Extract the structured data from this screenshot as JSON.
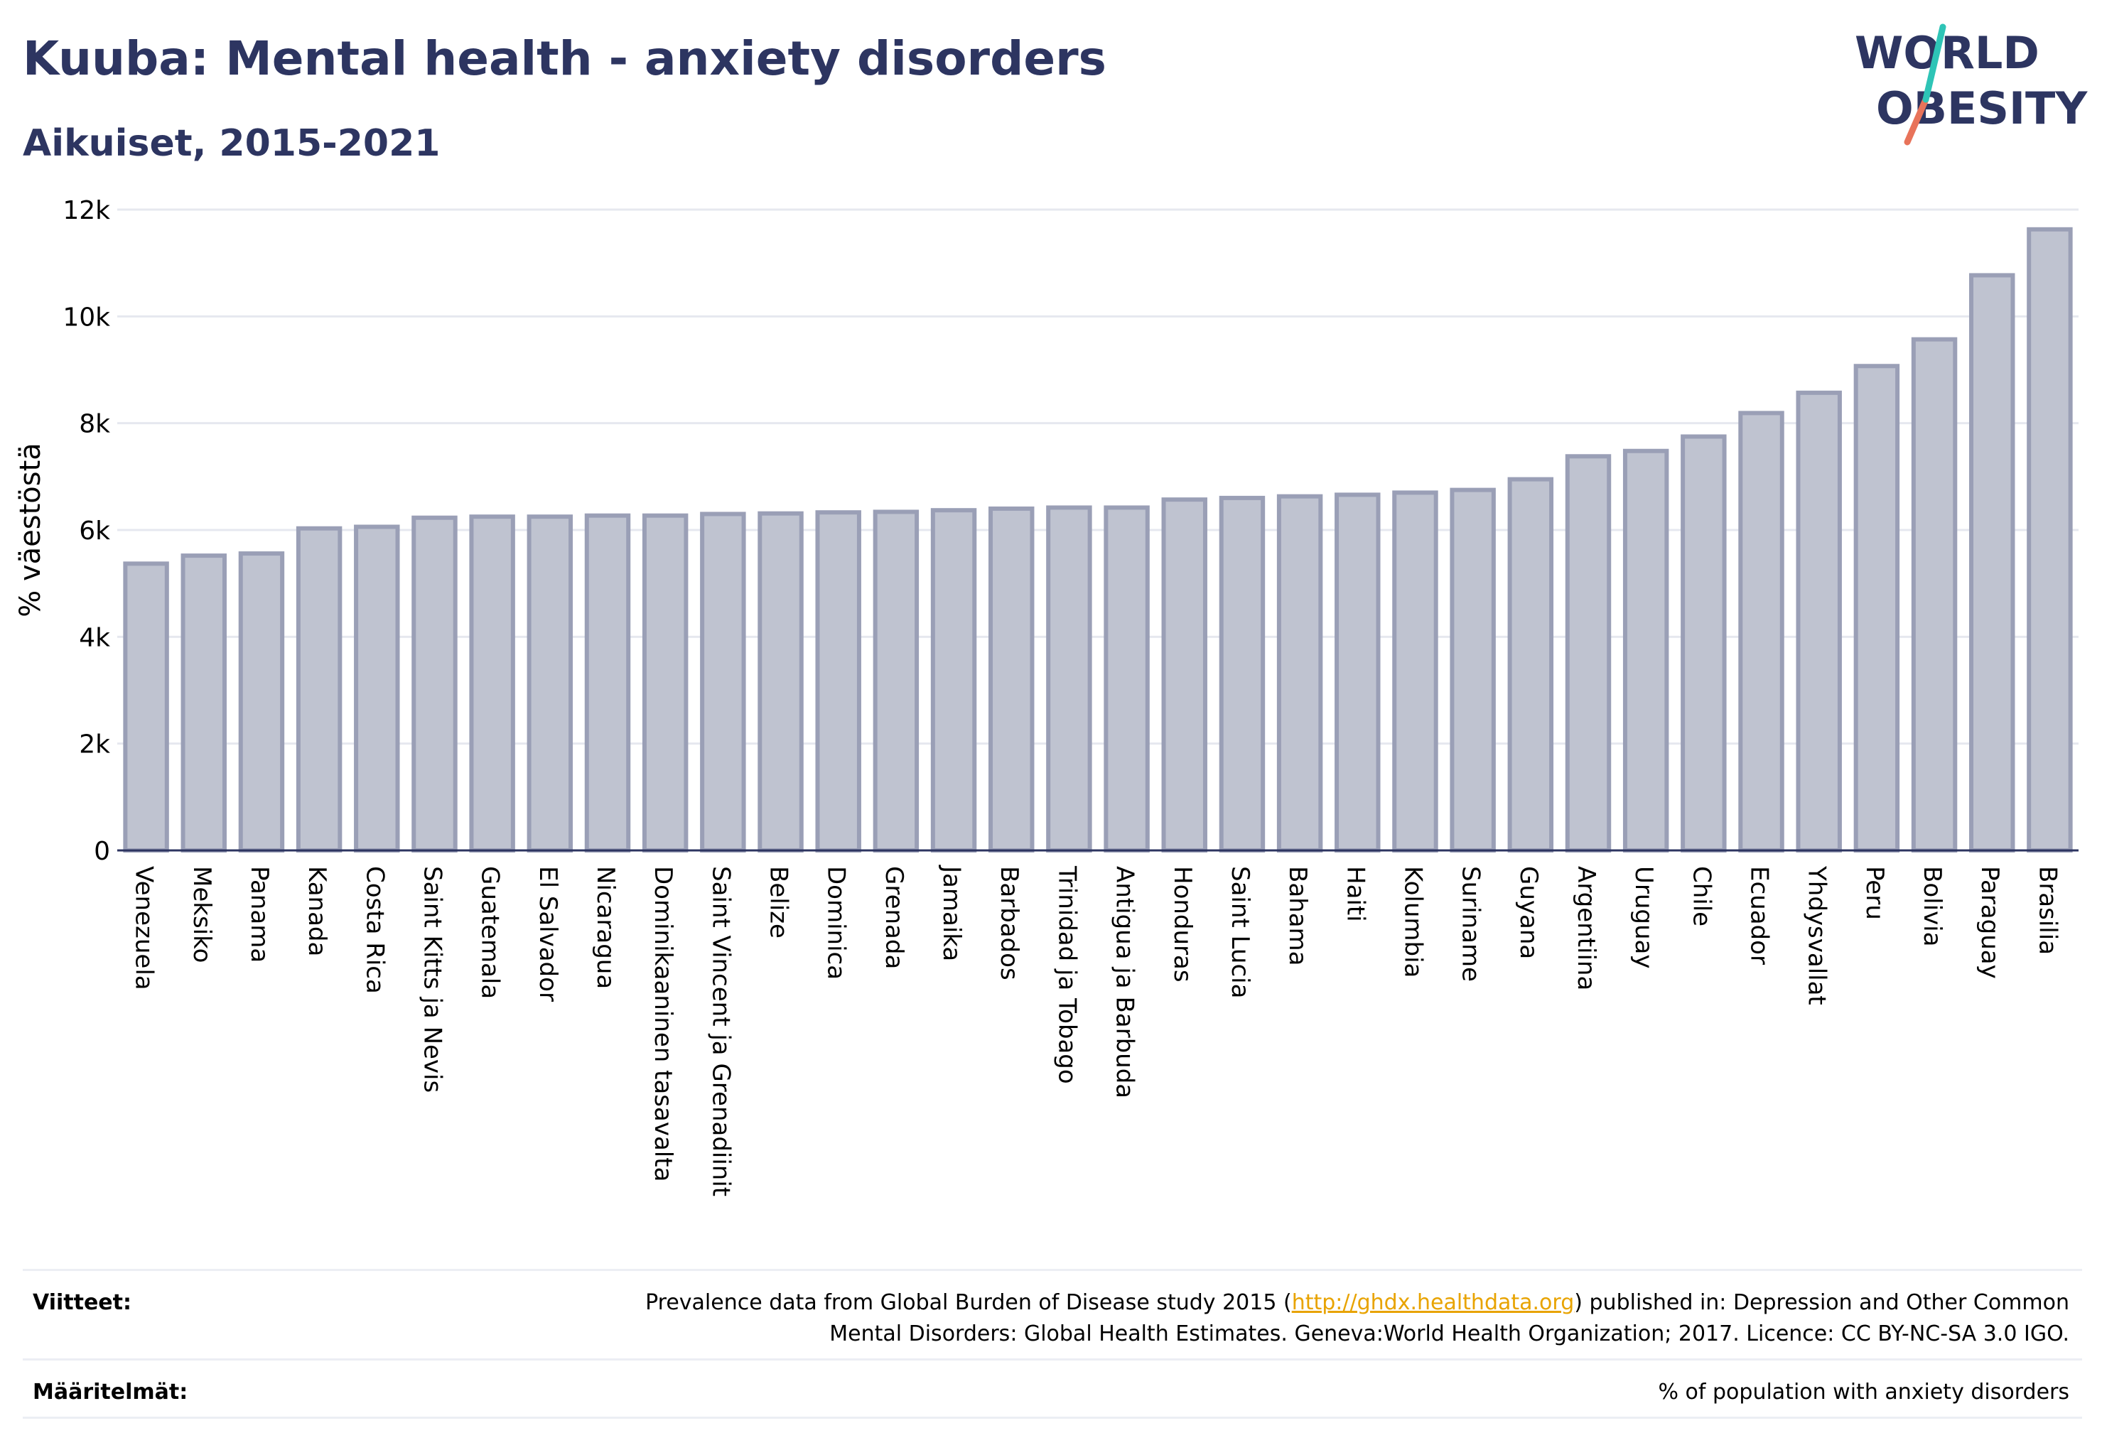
{
  "header": {
    "title": "Kuuba: Mental health - anxiety disorders",
    "subtitle": "Aikuiset, 2015-2021"
  },
  "logo": {
    "line1": "WORLD",
    "line2": "OBESITY"
  },
  "footer": {
    "sources_label": "Viitteet:",
    "sources_text_1": "Prevalence data from Global Burden of Disease study 2015 (",
    "sources_link": "http://ghdx.healthdata.org",
    "sources_text_2": ") published in: Depression and Other Common",
    "sources_text_3": "Mental Disorders: Global Health Estimates. Geneva:World Health Organization; 2017. Licence: CC BY-NC-SA 3.0 IGO.",
    "definitions_label": "Määritelmät:",
    "definitions_text": "% of population with anxiety disorders"
  },
  "colors": {
    "bar_fill": "#bfc3d0",
    "bar_stroke": "#9a9fb6",
    "text": "#2d3561",
    "accent_teal": "#2ec4b6",
    "accent_coral": "#e8735a"
  },
  "chart_data": {
    "type": "bar",
    "ylabel": "% väestöstä",
    "ylim": [
      0,
      12000
    ],
    "yticks": [
      0,
      2000,
      4000,
      6000,
      8000,
      10000,
      12000
    ],
    "ytick_labels": [
      "0",
      "2k",
      "4k",
      "6k",
      "8k",
      "10k",
      "12k"
    ],
    "grid": true,
    "categories": [
      "Venezuela",
      "Meksiko",
      "Panama",
      "Kanada",
      "Costa Rica",
      "Saint Kitts ja Nevis",
      "Guatemala",
      "El Salvador",
      "Nicaragua",
      "Dominikaaninen tasavalta",
      "Saint Vincent ja Grenadiinit",
      "Belize",
      "Dominica",
      "Grenada",
      "Jamaika",
      "Barbados",
      "Trinidad ja Tobago",
      "Antigua ja Barbuda",
      "Honduras",
      "Saint Lucia",
      "Bahama",
      "Haiti",
      "Kolumbia",
      "Suriname",
      "Guyana",
      "Argentiina",
      "Uruguay",
      "Chile",
      "Ecuador",
      "Yhdysvallat",
      "Peru",
      "Bolivia",
      "Paraguay",
      "Brasilia"
    ],
    "values": [
      5370,
      5520,
      5560,
      6030,
      6060,
      6230,
      6250,
      6250,
      6270,
      6270,
      6300,
      6310,
      6330,
      6340,
      6370,
      6400,
      6420,
      6420,
      6570,
      6600,
      6630,
      6660,
      6700,
      6750,
      6950,
      7380,
      7480,
      7750,
      8190,
      8570,
      9070,
      9570,
      10770,
      11630
    ]
  }
}
